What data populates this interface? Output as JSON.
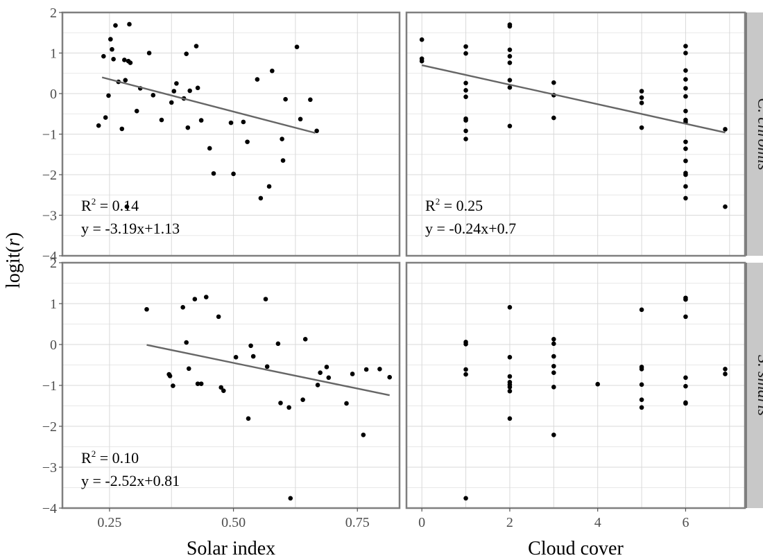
{
  "chart_data": {
    "type": "scatter",
    "ylabel": "logit(r)",
    "ylabel_plain": "logit(",
    "ylabel_italic": "r",
    "ylabel_close": ")",
    "ylim": [
      -4,
      2
    ],
    "yticks": [
      -4,
      -3,
      -2,
      -1,
      0,
      1,
      2
    ],
    "ytick_labels": [
      "−4",
      "−3",
      "−2",
      "−1",
      "0",
      "1",
      "2"
    ],
    "grid": true,
    "columns": [
      {
        "xlabel": "Solar index",
        "xlim": [
          0.155,
          0.835
        ],
        "xticks": [
          0.25,
          0.5,
          0.75
        ],
        "xtick_labels": [
          "0.25",
          "0.50",
          "0.75"
        ],
        "minor_xticks": [
          0.375,
          0.625
        ]
      },
      {
        "xlabel": "Cloud cover",
        "xlim": [
          -0.35,
          7.35
        ],
        "xticks": [
          0,
          2,
          4,
          6
        ],
        "xtick_labels": [
          "0",
          "2",
          "4",
          "6"
        ],
        "minor_xticks": [
          1,
          3,
          5,
          7
        ]
      }
    ],
    "rows": [
      {
        "strip": "C. chromis"
      },
      {
        "strip": "S. smaris"
      }
    ],
    "panels": [
      {
        "row": 0,
        "col": 0,
        "r2_label": "R",
        "r2_sup": "2",
        "r2_value": " = 0.14",
        "equation": "y = -3.19x+1.13",
        "fit": {
          "x": [
            0.235,
            0.665
          ],
          "y": [
            0.4,
            -0.97
          ]
        },
        "points": [
          [
            0.228,
            -0.79
          ],
          [
            0.238,
            0.92
          ],
          [
            0.242,
            -0.59
          ],
          [
            0.248,
            -0.05
          ],
          [
            0.252,
            1.34
          ],
          [
            0.255,
            1.09
          ],
          [
            0.258,
            0.85
          ],
          [
            0.262,
            1.68
          ],
          [
            0.268,
            0.29
          ],
          [
            0.275,
            -0.87
          ],
          [
            0.28,
            0.83
          ],
          [
            0.282,
            0.33
          ],
          [
            0.285,
            -2.79
          ],
          [
            0.288,
            0.8
          ],
          [
            0.29,
            1.71
          ],
          [
            0.292,
            0.76
          ],
          [
            0.305,
            -0.43
          ],
          [
            0.312,
            0.13
          ],
          [
            0.33,
            1.0
          ],
          [
            0.338,
            -0.04
          ],
          [
            0.355,
            -0.65
          ],
          [
            0.375,
            -0.22
          ],
          [
            0.38,
            0.06
          ],
          [
            0.385,
            0.25
          ],
          [
            0.4,
            -0.12
          ],
          [
            0.405,
            0.98
          ],
          [
            0.408,
            -0.84
          ],
          [
            0.412,
            0.07
          ],
          [
            0.425,
            1.17
          ],
          [
            0.428,
            0.14
          ],
          [
            0.435,
            -0.66
          ],
          [
            0.452,
            -1.35
          ],
          [
            0.46,
            -1.97
          ],
          [
            0.495,
            -0.72
          ],
          [
            0.5,
            -1.98
          ],
          [
            0.52,
            -0.7
          ],
          [
            0.528,
            -1.19
          ],
          [
            0.548,
            0.35
          ],
          [
            0.555,
            -2.58
          ],
          [
            0.572,
            -2.29
          ],
          [
            0.578,
            0.56
          ],
          [
            0.598,
            -1.12
          ],
          [
            0.6,
            -1.65
          ],
          [
            0.605,
            -0.14
          ],
          [
            0.628,
            1.15
          ],
          [
            0.635,
            -0.63
          ],
          [
            0.655,
            -0.15
          ],
          [
            0.668,
            -0.92
          ]
        ]
      },
      {
        "row": 0,
        "col": 1,
        "r2_label": "R",
        "r2_sup": "2",
        "r2_value": " = 0.25",
        "equation": "y = -0.24x+0.7",
        "fit": {
          "x": [
            0,
            6.9
          ],
          "y": [
            0.7,
            -0.96
          ]
        },
        "points": [
          [
            0,
            1.33
          ],
          [
            0,
            0.86
          ],
          [
            0,
            0.8
          ],
          [
            1,
            1.16
          ],
          [
            1,
            0.99
          ],
          [
            1,
            0.26
          ],
          [
            1,
            0.08
          ],
          [
            1,
            -0.08
          ],
          [
            1,
            -0.62
          ],
          [
            1,
            -0.66
          ],
          [
            1,
            -0.92
          ],
          [
            1,
            -1.12
          ],
          [
            2,
            1.7
          ],
          [
            2,
            1.66
          ],
          [
            2,
            1.08
          ],
          [
            2,
            0.92
          ],
          [
            2,
            0.76
          ],
          [
            2,
            0.33
          ],
          [
            2,
            0.15
          ],
          [
            2,
            -0.8
          ],
          [
            3,
            0.27
          ],
          [
            3,
            -0.04
          ],
          [
            3,
            -0.6
          ],
          [
            5,
            0.06
          ],
          [
            5,
            -0.1
          ],
          [
            5,
            -0.23
          ],
          [
            5,
            -0.84
          ],
          [
            6,
            1.17
          ],
          [
            6,
            1.0
          ],
          [
            6,
            0.57
          ],
          [
            6,
            0.35
          ],
          [
            6,
            0.13
          ],
          [
            6,
            -0.07
          ],
          [
            6,
            -0.43
          ],
          [
            6,
            -0.65
          ],
          [
            6,
            -0.7
          ],
          [
            6,
            -1.19
          ],
          [
            6,
            -1.36
          ],
          [
            6,
            -1.66
          ],
          [
            6,
            -1.96
          ],
          [
            6,
            -2.0
          ],
          [
            6,
            -2.29
          ],
          [
            6,
            -2.58
          ],
          [
            6.9,
            -0.88
          ],
          [
            6.9,
            -2.79
          ]
        ]
      },
      {
        "row": 1,
        "col": 0,
        "r2_label": "R",
        "r2_sup": "2",
        "r2_value": " = 0.10",
        "equation": "y = -2.52x+0.81",
        "fit": {
          "x": [
            0.325,
            0.815
          ],
          "y": [
            -0.01,
            -1.24
          ]
        },
        "points": [
          [
            0.325,
            0.86
          ],
          [
            0.37,
            -0.73
          ],
          [
            0.372,
            -0.77
          ],
          [
            0.378,
            -1.01
          ],
          [
            0.398,
            0.91
          ],
          [
            0.405,
            0.05
          ],
          [
            0.41,
            -0.59
          ],
          [
            0.422,
            1.11
          ],
          [
            0.428,
            -0.96
          ],
          [
            0.435,
            -0.96
          ],
          [
            0.445,
            1.16
          ],
          [
            0.47,
            0.68
          ],
          [
            0.475,
            -1.05
          ],
          [
            0.48,
            -1.13
          ],
          [
            0.505,
            -0.31
          ],
          [
            0.53,
            -1.81
          ],
          [
            0.535,
            -0.03
          ],
          [
            0.54,
            -0.29
          ],
          [
            0.565,
            1.11
          ],
          [
            0.568,
            -0.54
          ],
          [
            0.59,
            0.02
          ],
          [
            0.595,
            -1.43
          ],
          [
            0.612,
            -1.54
          ],
          [
            0.615,
            -3.76
          ],
          [
            0.64,
            -1.35
          ],
          [
            0.645,
            0.13
          ],
          [
            0.67,
            -0.99
          ],
          [
            0.675,
            -0.69
          ],
          [
            0.688,
            -0.55
          ],
          [
            0.692,
            -0.81
          ],
          [
            0.728,
            -1.44
          ],
          [
            0.74,
            -0.72
          ],
          [
            0.762,
            -2.21
          ],
          [
            0.768,
            -0.61
          ],
          [
            0.795,
            -0.6
          ],
          [
            0.815,
            -0.8
          ]
        ]
      },
      {
        "row": 1,
        "col": 1,
        "r2_label": "",
        "r2_sup": "",
        "r2_value": "",
        "equation": "",
        "fit": null,
        "points": [
          [
            1,
            0.06
          ],
          [
            1,
            0.01
          ],
          [
            1,
            -0.61
          ],
          [
            1,
            -0.73
          ],
          [
            1,
            -3.76
          ],
          [
            2,
            0.91
          ],
          [
            2,
            -0.31
          ],
          [
            2,
            -0.78
          ],
          [
            2,
            -0.92
          ],
          [
            2,
            -0.98
          ],
          [
            2,
            -1.04
          ],
          [
            2,
            -1.14
          ],
          [
            2,
            -1.81
          ],
          [
            3,
            0.13
          ],
          [
            3,
            0.02
          ],
          [
            3,
            -0.29
          ],
          [
            3,
            -0.53
          ],
          [
            3,
            -0.69
          ],
          [
            3,
            -1.04
          ],
          [
            3,
            -2.21
          ],
          [
            4,
            -0.97
          ],
          [
            5,
            0.85
          ],
          [
            5,
            -0.55
          ],
          [
            5,
            -0.6
          ],
          [
            5,
            -0.98
          ],
          [
            5,
            -1.35
          ],
          [
            5,
            -1.54
          ],
          [
            6,
            1.14
          ],
          [
            6,
            1.1
          ],
          [
            6,
            0.68
          ],
          [
            6,
            -0.81
          ],
          [
            6,
            -1.02
          ],
          [
            6,
            -1.42
          ],
          [
            6,
            -1.44
          ],
          [
            6.9,
            -0.6
          ],
          [
            6.9,
            -0.72
          ]
        ]
      }
    ]
  }
}
